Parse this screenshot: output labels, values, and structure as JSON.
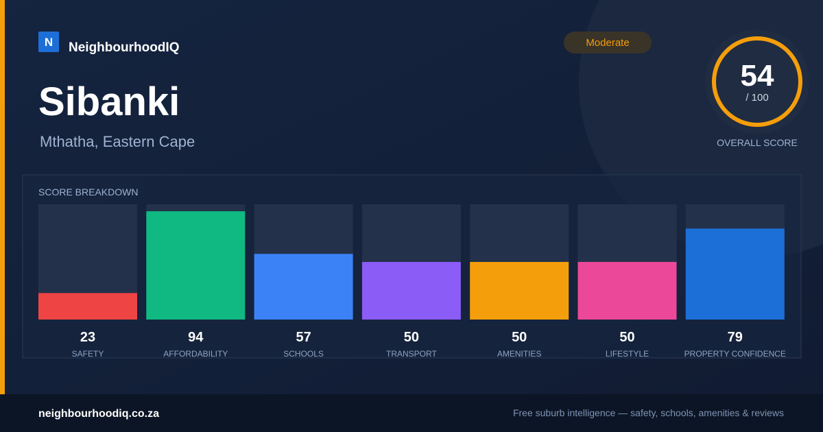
{
  "brand": {
    "logo": "N",
    "name": "NeighbourhoodIQ"
  },
  "badge": "Moderate",
  "title": "Sibanki",
  "location": "Mthatha, Eastern Cape",
  "score": {
    "value": 54,
    "total": "/ 100",
    "label": "OVERALL SCORE"
  },
  "chart_data": {
    "type": "bar",
    "title": "SCORE BREAKDOWN",
    "categories": [
      "SAFETY",
      "AFFORDABILITY",
      "SCHOOLS",
      "TRANSPORT",
      "AMENITIES",
      "LIFESTYLE",
      "PROPERTY CONFIDENCE"
    ],
    "values": [
      23,
      94,
      57,
      50,
      50,
      50,
      79
    ],
    "colors": [
      "#ef4444",
      "#10b981",
      "#3b82f6",
      "#8b5cf6",
      "#f59e0b",
      "#ec4899",
      "#1d6fd8"
    ],
    "ylim": [
      0,
      100
    ]
  },
  "footer": {
    "url": "neighbourhoodiq.co.za",
    "tagline": "Free suburb intelligence — safety, schools, amenities & reviews"
  }
}
